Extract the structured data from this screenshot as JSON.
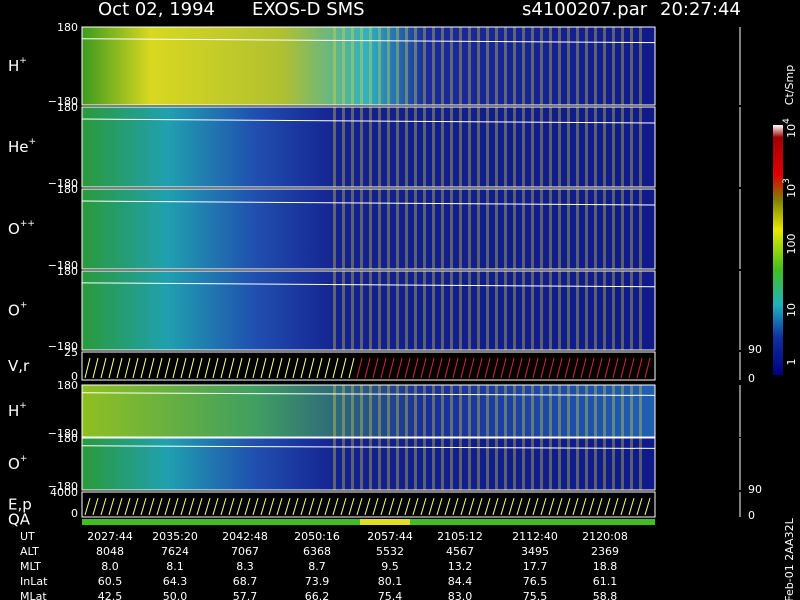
{
  "header": {
    "date": "Oct 02, 1994",
    "instrument": "EXOS-D SMS",
    "file": "s4100207.par",
    "time": "20:27:44"
  },
  "panels": [
    {
      "label": "H",
      "sup": "+",
      "top": "180",
      "bottom": "−180"
    },
    {
      "label": "He",
      "sup": "+",
      "top": "180",
      "bottom": "−180"
    },
    {
      "label": "O",
      "sup": "++",
      "top": "180",
      "bottom": "−180"
    },
    {
      "label": "O",
      "sup": "+",
      "top": "180",
      "bottom": "−180"
    },
    {
      "label": "V,r",
      "top": "25",
      "bottom": "0",
      "right_top": "90",
      "right_bottom": "0"
    },
    {
      "label": "H",
      "sup": "+",
      "top": "180",
      "bottom": "−180"
    },
    {
      "label": "O",
      "sup": "+",
      "top": "180",
      "bottom": "−180"
    },
    {
      "label": "E,p",
      "label2": "QA",
      "top": "4000",
      "bottom": "0",
      "right_top": "90",
      "right_bottom": "0"
    }
  ],
  "colorbar": {
    "title": "Ct/Smp",
    "labels": [
      {
        "base": "10",
        "sup": "4"
      },
      {
        "base": "10",
        "sup": "3"
      },
      {
        "base": "100"
      },
      {
        "base": "10"
      },
      {
        "base": "1"
      }
    ]
  },
  "table": {
    "rows": [
      {
        "label": "UT",
        "values": [
          "2027:44",
          "2035:20",
          "2042:48",
          "2050:16",
          "2057:44",
          "2105:12",
          "2112:40",
          "2120:08"
        ]
      },
      {
        "label": "ALT",
        "values": [
          "8048",
          "7624",
          "7067",
          "6368",
          "5532",
          "4567",
          "3495",
          "2369"
        ]
      },
      {
        "label": "MLT",
        "values": [
          "8.0",
          "8.1",
          "8.3",
          "8.7",
          "9.5",
          "13.2",
          "17.7",
          "18.8"
        ]
      },
      {
        "label": "InLat",
        "values": [
          "60.5",
          "64.3",
          "68.7",
          "73.9",
          "80.1",
          "84.4",
          "76.5",
          "61.1"
        ]
      },
      {
        "label": "MLat",
        "values": [
          "42.5",
          "50.0",
          "57.7",
          "66.2",
          "75.4",
          "83.0",
          "75.5",
          "58.8"
        ]
      }
    ]
  },
  "footer": "Feb-01 2AA32L"
}
